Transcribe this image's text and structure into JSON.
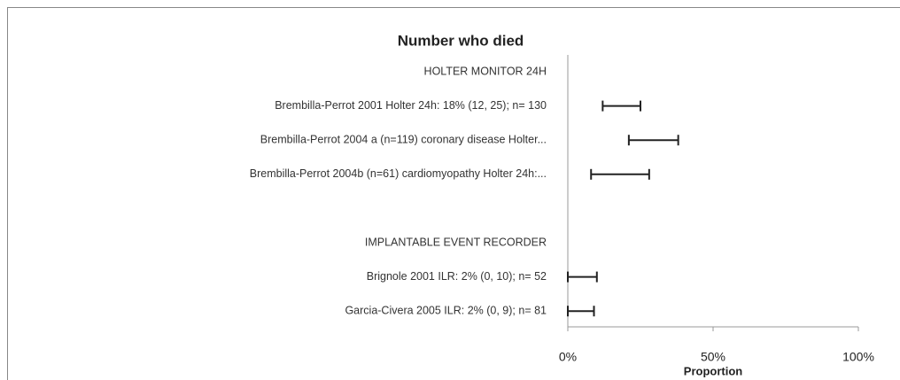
{
  "chart_data": {
    "type": "errorbar",
    "title": "Number who died",
    "x_label": "Proportion",
    "categories": [
      "HOLTER MONITOR 24H",
      "Brembilla-Perrot 2001 Holter 24h: 18% (12, 25); n= 130",
      "Brembilla-Perrot 2004 a (n=119) coronary disease Holter...",
      "Brembilla-Perrot 2004b (n=61) cardiomyopathy Holter 24h:...",
      null,
      "IMPLANTABLE EVENT RECORDER",
      "Brignole 2001 ILR: 2% (0, 10); n= 52",
      "Garcia-Civera 2005 ILR: 2% (0, 9); n= 81"
    ],
    "lower": [
      null,
      12,
      21,
      8,
      null,
      null,
      0,
      0
    ],
    "upper": [
      null,
      25,
      38,
      28,
      null,
      null,
      10,
      9
    ],
    "color": "#222222",
    "xlim": [
      0,
      100
    ],
    "xticks": [
      {
        "value": 0,
        "label": "0%"
      },
      {
        "value": 50,
        "label": "50%"
      },
      {
        "value": 100,
        "label": "100%"
      }
    ]
  }
}
